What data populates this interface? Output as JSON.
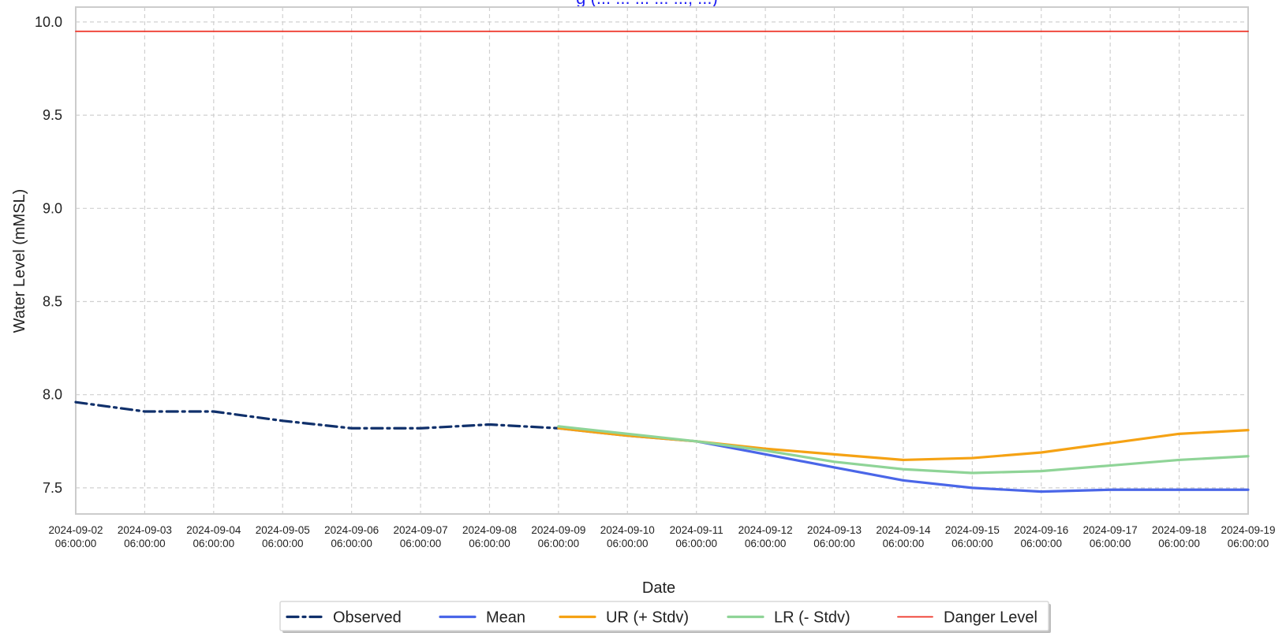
{
  "chart_data": {
    "type": "line",
    "title": "",
    "title_visible_fragment": "g (... ... ... ... ..., ...)",
    "title_color": "#1f1ff5",
    "xlabel": "Date",
    "ylabel": "Water Level (mMSL)",
    "x_tick_labels": [
      [
        "2024-09-02",
        "06:00:00"
      ],
      [
        "2024-09-03",
        "06:00:00"
      ],
      [
        "2024-09-04",
        "06:00:00"
      ],
      [
        "2024-09-05",
        "06:00:00"
      ],
      [
        "2024-09-06",
        "06:00:00"
      ],
      [
        "2024-09-07",
        "06:00:00"
      ],
      [
        "2024-09-08",
        "06:00:00"
      ],
      [
        "2024-09-09",
        "06:00:00"
      ],
      [
        "2024-09-10",
        "06:00:00"
      ],
      [
        "2024-09-11",
        "06:00:00"
      ],
      [
        "2024-09-12",
        "06:00:00"
      ],
      [
        "2024-09-13",
        "06:00:00"
      ],
      [
        "2024-09-14",
        "06:00:00"
      ],
      [
        "2024-09-15",
        "06:00:00"
      ],
      [
        "2024-09-16",
        "06:00:00"
      ],
      [
        "2024-09-17",
        "06:00:00"
      ],
      [
        "2024-09-18",
        "06:00:00"
      ],
      [
        "2024-09-19",
        "06:00:00"
      ]
    ],
    "y_ticks": [
      7.5,
      8.0,
      8.5,
      9.0,
      9.5,
      10.0
    ],
    "y_tick_labels": [
      "7.5",
      "8.0",
      "8.5",
      "9.0",
      "9.5",
      "10.0"
    ],
    "xlim": [
      "2024-09-02 06:00:00",
      "2024-09-19 06:00:00"
    ],
    "ylim": [
      7.36,
      10.08
    ],
    "grid": true,
    "grid_style": "dashed",
    "legend_position": "bottom-center",
    "series": [
      {
        "name": "Observed",
        "color": "#10306b",
        "style": "dashdot",
        "x": [
          "2024-09-02 06:00:00",
          "2024-09-03 06:00:00",
          "2024-09-04 06:00:00",
          "2024-09-05 06:00:00",
          "2024-09-06 06:00:00",
          "2024-09-07 06:00:00",
          "2024-09-08 06:00:00",
          "2024-09-09 06:00:00"
        ],
        "y": [
          7.96,
          7.91,
          7.91,
          7.86,
          7.82,
          7.82,
          7.84,
          7.82
        ]
      },
      {
        "name": "Mean",
        "color": "#4a66e8",
        "style": "solid",
        "x": [
          "2024-09-09 06:00:00",
          "2024-09-10 06:00:00",
          "2024-09-11 06:00:00",
          "2024-09-12 06:00:00",
          "2024-09-13 06:00:00",
          "2024-09-14 06:00:00",
          "2024-09-15 06:00:00",
          "2024-09-16 06:00:00",
          "2024-09-17 06:00:00",
          "2024-09-18 06:00:00",
          "2024-09-19 06:00:00"
        ],
        "y": [
          7.82,
          7.78,
          7.75,
          7.68,
          7.61,
          7.54,
          7.5,
          7.48,
          7.49,
          7.49,
          7.49
        ]
      },
      {
        "name": "UR (+ Stdv)",
        "color": "#f5a214",
        "style": "solid",
        "x": [
          "2024-09-09 06:00:00",
          "2024-09-10 06:00:00",
          "2024-09-11 06:00:00",
          "2024-09-12 06:00:00",
          "2024-09-13 06:00:00",
          "2024-09-14 06:00:00",
          "2024-09-15 06:00:00",
          "2024-09-16 06:00:00",
          "2024-09-17 06:00:00",
          "2024-09-18 06:00:00",
          "2024-09-19 06:00:00"
        ],
        "y": [
          7.82,
          7.78,
          7.75,
          7.71,
          7.68,
          7.65,
          7.66,
          7.69,
          7.74,
          7.79,
          7.81
        ]
      },
      {
        "name": "LR (- Stdv)",
        "color": "#8fd497",
        "style": "solid",
        "x": [
          "2024-09-09 06:00:00",
          "2024-09-10 06:00:00",
          "2024-09-11 06:00:00",
          "2024-09-12 06:00:00",
          "2024-09-13 06:00:00",
          "2024-09-14 06:00:00",
          "2024-09-15 06:00:00",
          "2024-09-16 06:00:00",
          "2024-09-17 06:00:00",
          "2024-09-18 06:00:00",
          "2024-09-19 06:00:00"
        ],
        "y": [
          7.83,
          7.79,
          7.75,
          7.7,
          7.64,
          7.6,
          7.58,
          7.59,
          7.62,
          7.65,
          7.67
        ]
      },
      {
        "name": "Danger Level",
        "color": "#ee3124",
        "style": "solid",
        "x": [
          "2024-09-02 06:00:00",
          "2024-09-19 06:00:00"
        ],
        "y": [
          9.95,
          9.95
        ]
      }
    ]
  }
}
